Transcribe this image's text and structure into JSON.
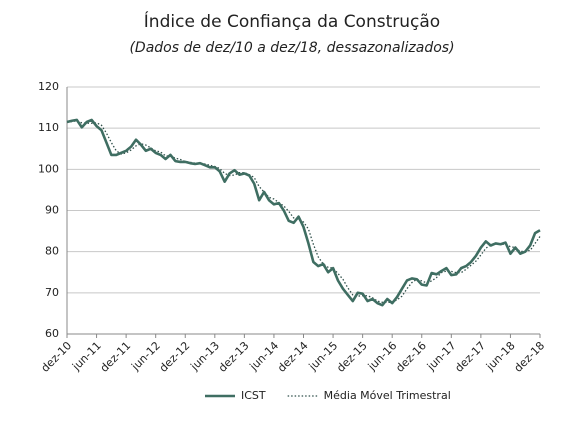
{
  "chart_data": {
    "type": "line",
    "title": "Índice de Confiança da Construção",
    "subtitle": "(Dados de dez/10 a dez/18, dessazonalizados)",
    "categories": [
      "dez-10",
      null,
      null,
      null,
      null,
      null,
      "jun-11",
      null,
      null,
      null,
      null,
      null,
      "dez-11",
      null,
      null,
      null,
      null,
      null,
      "jun-12",
      null,
      null,
      null,
      null,
      null,
      "dez-12",
      null,
      null,
      null,
      null,
      null,
      "jun-13",
      null,
      null,
      null,
      null,
      null,
      "dez-13",
      null,
      null,
      null,
      null,
      null,
      "jun-14",
      null,
      null,
      null,
      null,
      null,
      "dez-14",
      null,
      null,
      null,
      null,
      null,
      "jun-15",
      null,
      null,
      null,
      null,
      null,
      "dez-15",
      null,
      null,
      null,
      null,
      null,
      "jun-16",
      null,
      null,
      null,
      null,
      null,
      "dez-16",
      null,
      null,
      null,
      null,
      null,
      "jun-17",
      null,
      null,
      null,
      null,
      null,
      "dez-17",
      null,
      null,
      null,
      null,
      null,
      "jun-18",
      null,
      null,
      null,
      null,
      null,
      "dez-18"
    ],
    "series": [
      {
        "name": "ICST",
        "color": "#3f6e62",
        "style": "solid",
        "values": [
          111.5,
          111.8,
          112,
          110.2,
          111.5,
          112,
          110.5,
          109.5,
          106.5,
          103.5,
          103.5,
          104,
          104.5,
          105.5,
          107.2,
          106,
          104.5,
          105,
          104,
          103.5,
          102.5,
          103.5,
          102,
          101.8,
          101.8,
          101.5,
          101.3,
          101.5,
          101,
          100.5,
          100.5,
          99.5,
          97,
          99,
          99.8,
          98.7,
          99,
          98.5,
          96.5,
          92.5,
          94.5,
          92.5,
          91.5,
          91.8,
          90,
          87.5,
          87,
          88.5,
          86,
          82,
          77.5,
          76.5,
          77,
          75,
          76,
          73,
          71,
          69.5,
          68,
          70,
          69.8,
          68,
          68.5,
          67.5,
          67,
          68.5,
          67.5,
          69,
          71,
          73,
          73.5,
          73.3,
          72,
          71.8,
          74.8,
          74.5,
          75.3,
          76,
          74.3,
          74.5,
          76,
          76.5,
          77.5,
          79,
          81,
          82.5,
          81.5,
          82,
          81.8,
          82.2,
          79.5,
          81,
          79.5,
          80,
          81.5,
          84.5,
          85.2
        ]
      },
      {
        "name": "Média Móvel Trimestral",
        "color": "#2f4f4a",
        "style": "dotted",
        "values": [
          111.5,
          111.6,
          111.8,
          111.3,
          111.2,
          111.2,
          111.3,
          110.7,
          108.8,
          106.5,
          104.5,
          103.7,
          104,
          104.7,
          105.7,
          106.2,
          105.9,
          105.2,
          104.5,
          104.2,
          103.3,
          103.2,
          102.7,
          102.4,
          101.9,
          101.7,
          101.5,
          101.4,
          101.3,
          101,
          100.7,
          100.2,
          99,
          98.5,
          98.6,
          99.2,
          99.2,
          98.7,
          98,
          95.8,
          94.5,
          93.2,
          92.8,
          91.9,
          91.1,
          89.8,
          88.2,
          87.7,
          87.2,
          85.5,
          81.8,
          78.7,
          77,
          76.2,
          76,
          74.7,
          73.3,
          71.2,
          69.5,
          69.2,
          69.3,
          69.3,
          68.8,
          68,
          67.7,
          67.7,
          67.7,
          68.3,
          69.2,
          71,
          72.5,
          73.3,
          72.9,
          72.4,
          72.9,
          73.7,
          74.9,
          75.3,
          75.2,
          74.9,
          74.9,
          75.7,
          76.7,
          77.7,
          79.2,
          80.8,
          81.7,
          82,
          81.8,
          81.8,
          81.2,
          81,
          80,
          80.2,
          80.3,
          82,
          83.7
        ]
      }
    ],
    "ylim": [
      60,
      120
    ],
    "yticks": [
      60,
      70,
      80,
      90,
      100,
      110,
      120
    ],
    "grid": true,
    "legend": "bottom"
  }
}
